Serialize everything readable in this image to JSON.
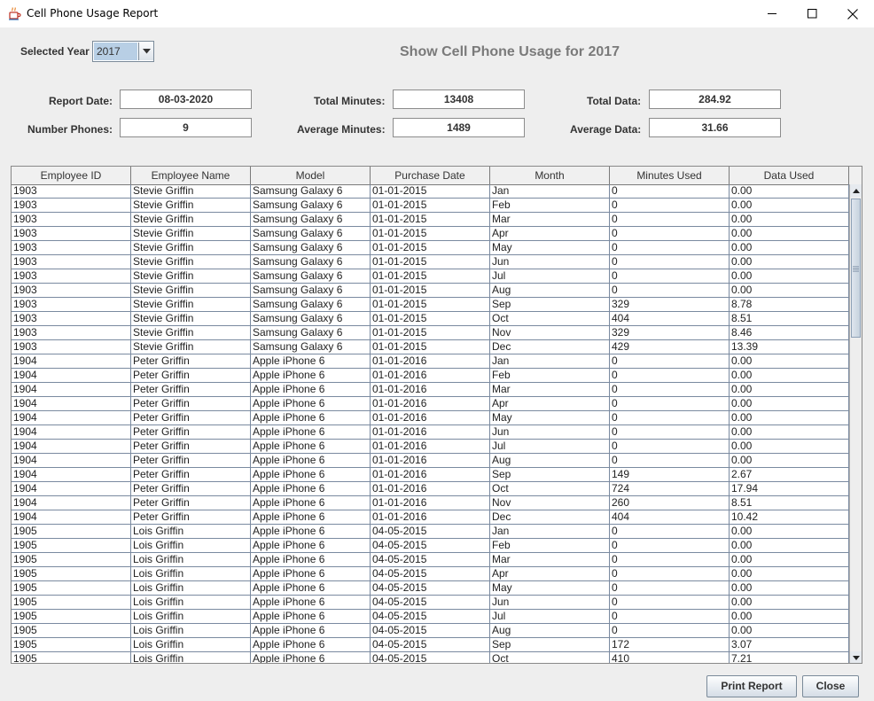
{
  "window": {
    "title": "Cell Phone Usage Report"
  },
  "filter": {
    "label": "Selected Year",
    "year": "2017"
  },
  "heading": "Show Cell Phone Usage for 2017",
  "summary": {
    "report_date_label": "Report Date:",
    "report_date": "08-03-2020",
    "total_minutes_label": "Total Minutes:",
    "total_minutes": "13408",
    "total_data_label": "Total Data:",
    "total_data": "284.92",
    "number_phones_label": "Number Phones:",
    "number_phones": "9",
    "average_minutes_label": "Average Minutes:",
    "average_minutes": "1489",
    "average_data_label": "Average Data:",
    "average_data": "31.66"
  },
  "table": {
    "columns": [
      "Employee ID",
      "Employee Name",
      "Model",
      "Purchase Date",
      "Month",
      "Minutes Used",
      "Data Used"
    ],
    "rows": [
      [
        "1903",
        "Stevie Griffin",
        "Samsung Galaxy 6",
        "01-01-2015",
        "Jan",
        "0",
        "0.00"
      ],
      [
        "1903",
        "Stevie Griffin",
        "Samsung Galaxy 6",
        "01-01-2015",
        "Feb",
        "0",
        "0.00"
      ],
      [
        "1903",
        "Stevie Griffin",
        "Samsung Galaxy 6",
        "01-01-2015",
        "Mar",
        "0",
        "0.00"
      ],
      [
        "1903",
        "Stevie Griffin",
        "Samsung Galaxy 6",
        "01-01-2015",
        "Apr",
        "0",
        "0.00"
      ],
      [
        "1903",
        "Stevie Griffin",
        "Samsung Galaxy 6",
        "01-01-2015",
        "May",
        "0",
        "0.00"
      ],
      [
        "1903",
        "Stevie Griffin",
        "Samsung Galaxy 6",
        "01-01-2015",
        "Jun",
        "0",
        "0.00"
      ],
      [
        "1903",
        "Stevie Griffin",
        "Samsung Galaxy 6",
        "01-01-2015",
        "Jul",
        "0",
        "0.00"
      ],
      [
        "1903",
        "Stevie Griffin",
        "Samsung Galaxy 6",
        "01-01-2015",
        "Aug",
        "0",
        "0.00"
      ],
      [
        "1903",
        "Stevie Griffin",
        "Samsung Galaxy 6",
        "01-01-2015",
        "Sep",
        "329",
        "8.78"
      ],
      [
        "1903",
        "Stevie Griffin",
        "Samsung Galaxy 6",
        "01-01-2015",
        "Oct",
        "404",
        "8.51"
      ],
      [
        "1903",
        "Stevie Griffin",
        "Samsung Galaxy 6",
        "01-01-2015",
        "Nov",
        "329",
        "8.46"
      ],
      [
        "1903",
        "Stevie Griffin",
        "Samsung Galaxy 6",
        "01-01-2015",
        "Dec",
        "429",
        "13.39"
      ],
      [
        "1904",
        "Peter Griffin",
        "Apple iPhone 6",
        "01-01-2016",
        "Jan",
        "0",
        "0.00"
      ],
      [
        "1904",
        "Peter Griffin",
        "Apple iPhone 6",
        "01-01-2016",
        "Feb",
        "0",
        "0.00"
      ],
      [
        "1904",
        "Peter Griffin",
        "Apple iPhone 6",
        "01-01-2016",
        "Mar",
        "0",
        "0.00"
      ],
      [
        "1904",
        "Peter Griffin",
        "Apple iPhone 6",
        "01-01-2016",
        "Apr",
        "0",
        "0.00"
      ],
      [
        "1904",
        "Peter Griffin",
        "Apple iPhone 6",
        "01-01-2016",
        "May",
        "0",
        "0.00"
      ],
      [
        "1904",
        "Peter Griffin",
        "Apple iPhone 6",
        "01-01-2016",
        "Jun",
        "0",
        "0.00"
      ],
      [
        "1904",
        "Peter Griffin",
        "Apple iPhone 6",
        "01-01-2016",
        "Jul",
        "0",
        "0.00"
      ],
      [
        "1904",
        "Peter Griffin",
        "Apple iPhone 6",
        "01-01-2016",
        "Aug",
        "0",
        "0.00"
      ],
      [
        "1904",
        "Peter Griffin",
        "Apple iPhone 6",
        "01-01-2016",
        "Sep",
        "149",
        "2.67"
      ],
      [
        "1904",
        "Peter Griffin",
        "Apple iPhone 6",
        "01-01-2016",
        "Oct",
        "724",
        "17.94"
      ],
      [
        "1904",
        "Peter Griffin",
        "Apple iPhone 6",
        "01-01-2016",
        "Nov",
        "260",
        "8.51"
      ],
      [
        "1904",
        "Peter Griffin",
        "Apple iPhone 6",
        "01-01-2016",
        "Dec",
        "404",
        "10.42"
      ],
      [
        "1905",
        "Lois Griffin",
        "Apple iPhone 6",
        "04-05-2015",
        "Jan",
        "0",
        "0.00"
      ],
      [
        "1905",
        "Lois Griffin",
        "Apple iPhone 6",
        "04-05-2015",
        "Feb",
        "0",
        "0.00"
      ],
      [
        "1905",
        "Lois Griffin",
        "Apple iPhone 6",
        "04-05-2015",
        "Mar",
        "0",
        "0.00"
      ],
      [
        "1905",
        "Lois Griffin",
        "Apple iPhone 6",
        "04-05-2015",
        "Apr",
        "0",
        "0.00"
      ],
      [
        "1905",
        "Lois Griffin",
        "Apple iPhone 6",
        "04-05-2015",
        "May",
        "0",
        "0.00"
      ],
      [
        "1905",
        "Lois Griffin",
        "Apple iPhone 6",
        "04-05-2015",
        "Jun",
        "0",
        "0.00"
      ],
      [
        "1905",
        "Lois Griffin",
        "Apple iPhone 6",
        "04-05-2015",
        "Jul",
        "0",
        "0.00"
      ],
      [
        "1905",
        "Lois Griffin",
        "Apple iPhone 6",
        "04-05-2015",
        "Aug",
        "0",
        "0.00"
      ],
      [
        "1905",
        "Lois Griffin",
        "Apple iPhone 6",
        "04-05-2015",
        "Sep",
        "172",
        "3.07"
      ],
      [
        "1905",
        "Lois Griffin",
        "Apple iPhone 6",
        "04-05-2015",
        "Oct",
        "410",
        "7.21"
      ]
    ]
  },
  "buttons": {
    "print_label": "Print Report",
    "close_label": "Close"
  },
  "colors": {
    "selection": "#b8cfe5",
    "heading": "#7a7a7a",
    "background": "#eeeeee"
  },
  "icons": [
    "java-app-icon",
    "minimize-icon",
    "maximize-icon",
    "close-icon",
    "chevron-down-icon",
    "scroll-up-icon",
    "scroll-down-icon"
  ]
}
